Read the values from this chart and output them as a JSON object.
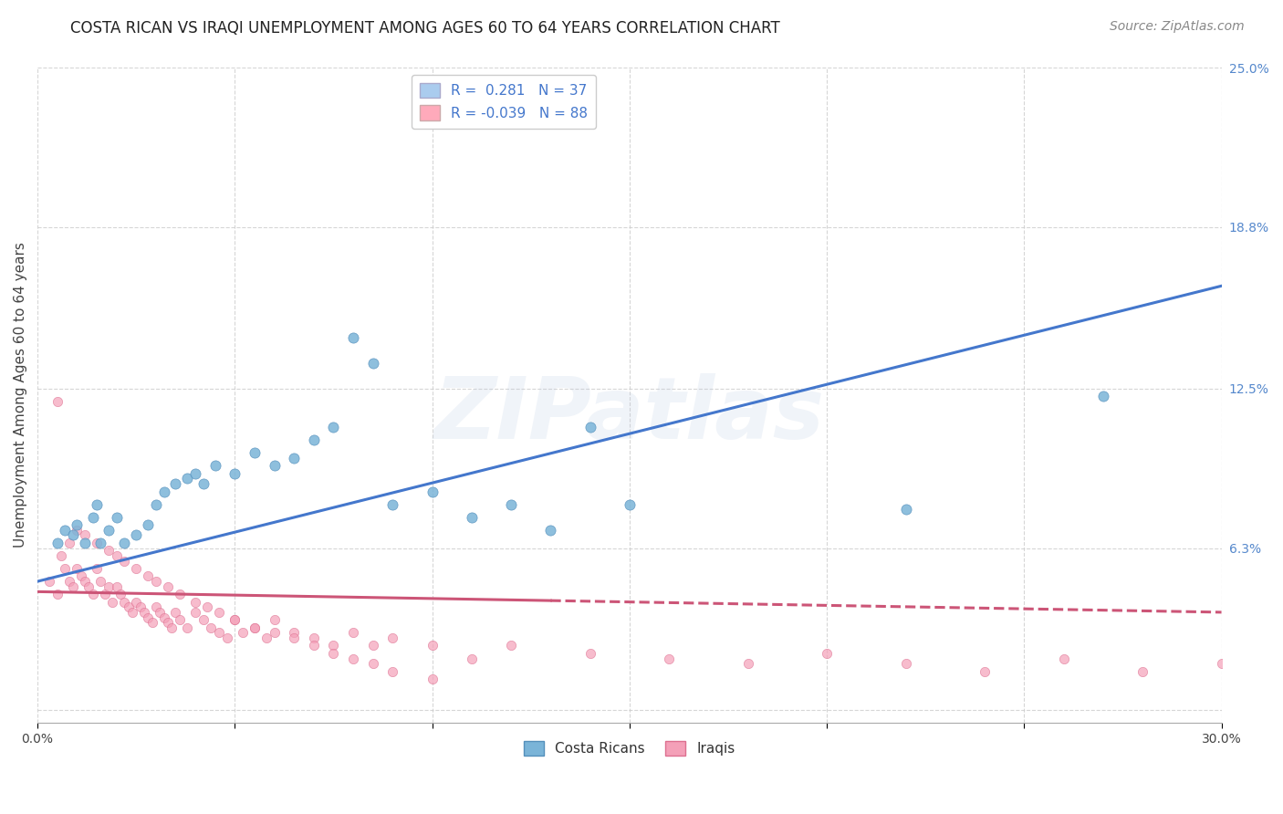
{
  "title": "COSTA RICAN VS IRAQI UNEMPLOYMENT AMONG AGES 60 TO 64 YEARS CORRELATION CHART",
  "source": "Source: ZipAtlas.com",
  "ylabel": "Unemployment Among Ages 60 to 64 years",
  "xlim": [
    0.0,
    0.3
  ],
  "ylim": [
    -0.005,
    0.25
  ],
  "xticks": [
    0.0,
    0.05,
    0.1,
    0.15,
    0.2,
    0.25,
    0.3
  ],
  "xtick_labels": [
    "0.0%",
    "",
    "",
    "",
    "",
    "",
    "30.0%"
  ],
  "yticks_right": [
    0.25,
    0.188,
    0.125,
    0.063,
    0.0
  ],
  "ytick_labels_right": [
    "25.0%",
    "18.8%",
    "12.5%",
    "6.3%",
    ""
  ],
  "legend_line1": "R =  0.281   N = 37",
  "legend_line2": "R = -0.039   N = 88",
  "legend_color1": "#aaccee",
  "legend_color2": "#ffaabb",
  "costa_rican_x": [
    0.005,
    0.007,
    0.009,
    0.01,
    0.012,
    0.014,
    0.015,
    0.016,
    0.018,
    0.02,
    0.022,
    0.025,
    0.028,
    0.03,
    0.032,
    0.035,
    0.038,
    0.04,
    0.042,
    0.045,
    0.05,
    0.055,
    0.06,
    0.065,
    0.07,
    0.075,
    0.08,
    0.085,
    0.09,
    0.1,
    0.11,
    0.12,
    0.13,
    0.14,
    0.15,
    0.22,
    0.27
  ],
  "costa_rican_y": [
    0.065,
    0.07,
    0.068,
    0.072,
    0.065,
    0.075,
    0.08,
    0.065,
    0.07,
    0.075,
    0.065,
    0.068,
    0.072,
    0.08,
    0.085,
    0.088,
    0.09,
    0.092,
    0.088,
    0.095,
    0.092,
    0.1,
    0.095,
    0.098,
    0.105,
    0.11,
    0.145,
    0.135,
    0.08,
    0.085,
    0.075,
    0.08,
    0.07,
    0.11,
    0.08,
    0.078,
    0.122
  ],
  "iraqi_x": [
    0.003,
    0.005,
    0.006,
    0.007,
    0.008,
    0.009,
    0.01,
    0.011,
    0.012,
    0.013,
    0.014,
    0.015,
    0.016,
    0.017,
    0.018,
    0.019,
    0.02,
    0.021,
    0.022,
    0.023,
    0.024,
    0.025,
    0.026,
    0.027,
    0.028,
    0.029,
    0.03,
    0.031,
    0.032,
    0.033,
    0.034,
    0.035,
    0.036,
    0.038,
    0.04,
    0.042,
    0.044,
    0.046,
    0.048,
    0.05,
    0.052,
    0.055,
    0.058,
    0.06,
    0.065,
    0.07,
    0.075,
    0.08,
    0.085,
    0.09,
    0.1,
    0.11,
    0.12,
    0.14,
    0.16,
    0.18,
    0.2,
    0.22,
    0.24,
    0.26,
    0.28,
    0.3,
    0.005,
    0.008,
    0.01,
    0.012,
    0.015,
    0.018,
    0.02,
    0.022,
    0.025,
    0.028,
    0.03,
    0.033,
    0.036,
    0.04,
    0.043,
    0.046,
    0.05,
    0.055,
    0.06,
    0.065,
    0.07,
    0.075,
    0.08,
    0.085,
    0.09,
    0.1
  ],
  "iraqi_y": [
    0.05,
    0.045,
    0.06,
    0.055,
    0.05,
    0.048,
    0.055,
    0.052,
    0.05,
    0.048,
    0.045,
    0.055,
    0.05,
    0.045,
    0.048,
    0.042,
    0.048,
    0.045,
    0.042,
    0.04,
    0.038,
    0.042,
    0.04,
    0.038,
    0.036,
    0.034,
    0.04,
    0.038,
    0.036,
    0.034,
    0.032,
    0.038,
    0.035,
    0.032,
    0.038,
    0.035,
    0.032,
    0.03,
    0.028,
    0.035,
    0.03,
    0.032,
    0.028,
    0.035,
    0.03,
    0.028,
    0.025,
    0.03,
    0.025,
    0.028,
    0.025,
    0.02,
    0.025,
    0.022,
    0.02,
    0.018,
    0.022,
    0.018,
    0.015,
    0.02,
    0.015,
    0.018,
    0.12,
    0.065,
    0.07,
    0.068,
    0.065,
    0.062,
    0.06,
    0.058,
    0.055,
    0.052,
    0.05,
    0.048,
    0.045,
    0.042,
    0.04,
    0.038,
    0.035,
    0.032,
    0.03,
    0.028,
    0.025,
    0.022,
    0.02,
    0.018,
    0.015,
    0.012
  ],
  "cr_color": "#7ab4d8",
  "cr_edge": "#5590bb",
  "iraqi_color": "#f4a0b8",
  "iraqi_edge": "#dd7090",
  "trendline_cr_x0": 0.0,
  "trendline_cr_y0": 0.05,
  "trendline_cr_x1": 0.3,
  "trendline_cr_y1": 0.165,
  "trendline_cr_color": "#4477cc",
  "trendline_iraqi_x0": 0.0,
  "trendline_iraqi_y0": 0.046,
  "trendline_iraqi_x1": 0.3,
  "trendline_iraqi_y1": 0.038,
  "trendline_iraqi_solid_end": 0.13,
  "trendline_iraqi_color": "#cc5577",
  "watermark_text": "ZIPatlas",
  "bg_color": "#ffffff",
  "grid_color": "#cccccc",
  "title_fontsize": 12,
  "source_fontsize": 10,
  "tick_fontsize": 10,
  "ylabel_fontsize": 11,
  "legend_fontsize": 11
}
